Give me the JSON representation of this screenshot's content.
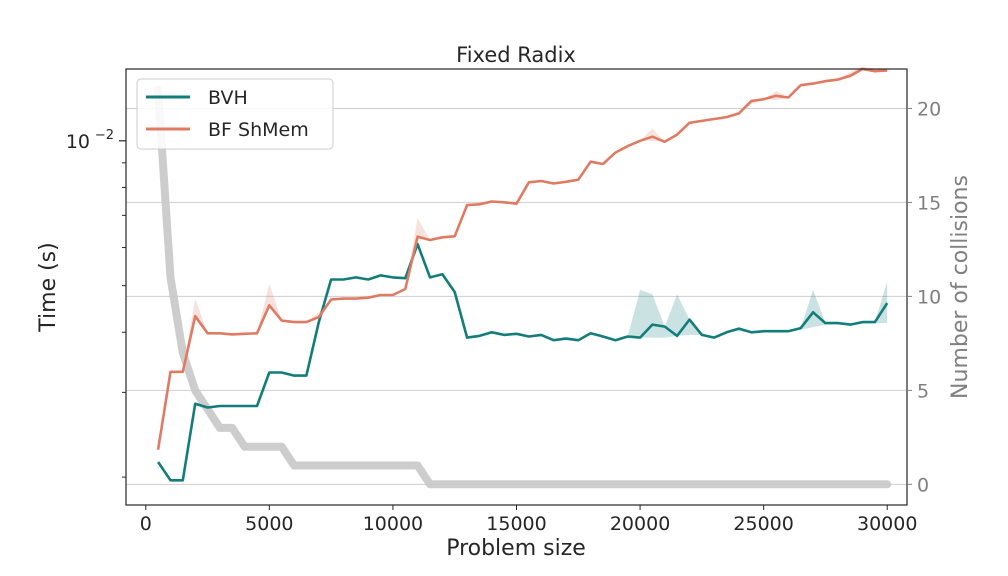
{
  "chart_data": {
    "type": "line",
    "title": "Fixed Radix",
    "xlabel": "Problem size",
    "ylabel_left": "Time (s)",
    "ylabel_right": "Number of collisions",
    "xlim": [
      -800,
      30800
    ],
    "xticks": [
      0,
      5000,
      10000,
      15000,
      20000,
      25000,
      30000
    ],
    "xtick_labels": [
      "0",
      "5000",
      "10000",
      "15000",
      "20000",
      "25000",
      "30000"
    ],
    "left_scale": "log",
    "left_ylim": [
      0.00175,
      0.0141
    ],
    "left_major_tick": {
      "value": 0.01,
      "base": "10",
      "exponent": "−2"
    },
    "left_minor_ticks": [
      0.002,
      0.003,
      0.004,
      0.005,
      0.006,
      0.007,
      0.008,
      0.009
    ],
    "right_ylim": [
      -1.1,
      22.1
    ],
    "right_ticks": [
      0,
      5,
      10,
      15,
      20
    ],
    "right_tick_labels": [
      "0",
      "5",
      "10",
      "15",
      "20"
    ],
    "grid": true,
    "legend_position": "top-left",
    "series": [
      {
        "name": "BVH",
        "color": "#127d7a",
        "x": [
          500,
          1000,
          1500,
          2000,
          2500,
          3000,
          3500,
          4000,
          4500,
          5000,
          5500,
          6000,
          6500,
          7000,
          7500,
          8000,
          8500,
          9000,
          9500,
          10000,
          10500,
          11000,
          11500,
          12000,
          12500,
          13000,
          13500,
          14000,
          14500,
          15000,
          15500,
          16000,
          16500,
          17000,
          17500,
          18000,
          18500,
          19000,
          19500,
          20000,
          20500,
          21000,
          21500,
          22000,
          22500,
          23000,
          23500,
          24000,
          24500,
          25000,
          25500,
          26000,
          26500,
          27000,
          27500,
          28000,
          28500,
          29000,
          29500,
          30000
        ],
        "y": [
          0.00215,
          0.00197,
          0.00197,
          0.00284,
          0.00279,
          0.00281,
          0.00281,
          0.00281,
          0.00281,
          0.0033,
          0.0033,
          0.00325,
          0.00325,
          0.0042,
          0.00515,
          0.00515,
          0.0052,
          0.00515,
          0.00525,
          0.0052,
          0.00518,
          0.0061,
          0.0052,
          0.00528,
          0.00485,
          0.0039,
          0.00393,
          0.004,
          0.00395,
          0.00397,
          0.00392,
          0.00395,
          0.00385,
          0.00388,
          0.00385,
          0.00398,
          0.00392,
          0.00385,
          0.00392,
          0.0039,
          0.00415,
          0.00411,
          0.00393,
          0.00425,
          0.00395,
          0.0039,
          0.004,
          0.00407,
          0.004,
          0.00402,
          0.00402,
          0.00402,
          0.00408,
          0.0044,
          0.00418,
          0.00418,
          0.00415,
          0.0042,
          0.0042,
          0.0046
        ],
        "band_upper": [
          0.00215,
          0.00197,
          0.00197,
          0.00284,
          0.00279,
          0.00281,
          0.00281,
          0.00281,
          0.00281,
          0.0033,
          0.0033,
          0.00325,
          0.00325,
          0.0042,
          0.00515,
          0.00515,
          0.0052,
          0.00515,
          0.00525,
          0.0052,
          0.00518,
          0.0061,
          0.0052,
          0.00528,
          0.00485,
          0.0039,
          0.00393,
          0.004,
          0.00395,
          0.00397,
          0.00392,
          0.00395,
          0.00385,
          0.00388,
          0.00385,
          0.00398,
          0.00392,
          0.00385,
          0.00392,
          0.0049,
          0.0048,
          0.00411,
          0.0048,
          0.00425,
          0.00395,
          0.0039,
          0.004,
          0.00407,
          0.004,
          0.00402,
          0.00402,
          0.00402,
          0.00408,
          0.0049,
          0.00418,
          0.00418,
          0.00415,
          0.0042,
          0.0042,
          0.0051
        ],
        "band_lower": [
          0.00215,
          0.00197,
          0.00197,
          0.00284,
          0.00279,
          0.00281,
          0.00281,
          0.00281,
          0.00281,
          0.0033,
          0.0033,
          0.00325,
          0.00325,
          0.0042,
          0.00515,
          0.00515,
          0.0052,
          0.00515,
          0.00525,
          0.0052,
          0.00518,
          0.0061,
          0.0052,
          0.00528,
          0.00485,
          0.0039,
          0.00393,
          0.004,
          0.00395,
          0.00397,
          0.00392,
          0.00395,
          0.00385,
          0.00388,
          0.00385,
          0.00398,
          0.00392,
          0.00385,
          0.00392,
          0.0039,
          0.0039,
          0.0039,
          0.00393,
          0.00395,
          0.00395,
          0.0039,
          0.004,
          0.00402,
          0.004,
          0.00402,
          0.00402,
          0.00402,
          0.00405,
          0.0041,
          0.00415,
          0.00418,
          0.00415,
          0.00418,
          0.00418,
          0.00418
        ]
      },
      {
        "name": "BF ShMem",
        "color": "#e07b63",
        "x": [
          500,
          1000,
          1500,
          2000,
          2500,
          3000,
          3500,
          4000,
          4500,
          5000,
          5500,
          6000,
          6500,
          7000,
          7500,
          8000,
          8500,
          9000,
          9500,
          10000,
          10500,
          11000,
          11500,
          12000,
          12500,
          13000,
          13500,
          14000,
          14500,
          15000,
          15500,
          16000,
          16500,
          17000,
          17500,
          18000,
          18500,
          19000,
          19500,
          20000,
          20500,
          21000,
          21500,
          22000,
          22500,
          23000,
          23500,
          24000,
          24500,
          25000,
          25500,
          26000,
          26500,
          27000,
          27500,
          28000,
          28500,
          29000,
          29500,
          30000
        ],
        "y": [
          0.00228,
          0.00331,
          0.00331,
          0.00432,
          0.00398,
          0.00398,
          0.00396,
          0.00397,
          0.00398,
          0.00455,
          0.00423,
          0.0042,
          0.0042,
          0.0043,
          0.00468,
          0.0047,
          0.0047,
          0.00472,
          0.00478,
          0.00478,
          0.00492,
          0.00632,
          0.00622,
          0.0063,
          0.00633,
          0.00735,
          0.00738,
          0.00748,
          0.00745,
          0.0074,
          0.0082,
          0.00825,
          0.00815,
          0.00822,
          0.0083,
          0.00905,
          0.00895,
          0.00945,
          0.00975,
          0.01,
          0.0102,
          0.00995,
          0.0103,
          0.0109,
          0.011,
          0.0111,
          0.0112,
          0.0114,
          0.0121,
          0.0122,
          0.0124,
          0.0123,
          0.01305,
          0.01315,
          0.0133,
          0.0134,
          0.01365,
          0.0141,
          0.01395,
          0.014
        ],
        "band_upper": [
          0.00228,
          0.00331,
          0.00331,
          0.0047,
          0.00398,
          0.00398,
          0.00396,
          0.00397,
          0.00398,
          0.00505,
          0.00423,
          0.0042,
          0.0042,
          0.0044,
          0.00468,
          0.0047,
          0.0047,
          0.00472,
          0.00478,
          0.00478,
          0.00492,
          0.0069,
          0.00622,
          0.0063,
          0.00633,
          0.00735,
          0.00738,
          0.00748,
          0.00745,
          0.0074,
          0.0082,
          0.00825,
          0.00815,
          0.00822,
          0.0083,
          0.00905,
          0.00895,
          0.00945,
          0.00975,
          0.01,
          0.0106,
          0.00995,
          0.0103,
          0.0109,
          0.011,
          0.0111,
          0.0112,
          0.0114,
          0.0121,
          0.0122,
          0.0127,
          0.0123,
          0.01305,
          0.01315,
          0.0133,
          0.0134,
          0.0139,
          0.0143,
          0.0141,
          0.014
        ],
        "band_lower": [
          0.00228,
          0.00331,
          0.00331,
          0.00432,
          0.00398,
          0.00398,
          0.00396,
          0.00397,
          0.00398,
          0.00455,
          0.00423,
          0.0042,
          0.0042,
          0.0043,
          0.00468,
          0.0047,
          0.0047,
          0.00472,
          0.00478,
          0.00478,
          0.00492,
          0.00632,
          0.00622,
          0.0063,
          0.00633,
          0.00735,
          0.00738,
          0.00748,
          0.00745,
          0.0074,
          0.0082,
          0.00825,
          0.00815,
          0.00822,
          0.0083,
          0.00905,
          0.00895,
          0.00945,
          0.00975,
          0.01,
          0.01,
          0.00995,
          0.0103,
          0.0109,
          0.011,
          0.0111,
          0.0112,
          0.0114,
          0.0119,
          0.0122,
          0.01215,
          0.0123,
          0.01305,
          0.01315,
          0.0133,
          0.0134,
          0.0135,
          0.014,
          0.01395,
          0.014
        ]
      },
      {
        "name": "Number of collisions",
        "color": "#c8c8c8",
        "axis": "right",
        "x": [
          500,
          1000,
          1500,
          2000,
          2500,
          3000,
          3500,
          4000,
          4500,
          5000,
          5500,
          6000,
          6500,
          7000,
          7500,
          8000,
          8500,
          9000,
          9500,
          10000,
          10500,
          11000,
          11500,
          12000,
          12500,
          13000,
          13500,
          14000,
          14500,
          15000,
          15500,
          16000,
          16500,
          17000,
          17500,
          18000,
          18500,
          19000,
          19500,
          20000,
          20500,
          21000,
          21500,
          22000,
          22500,
          23000,
          23500,
          24000,
          24500,
          25000,
          25500,
          26000,
          26500,
          27000,
          27500,
          28000,
          28500,
          29000,
          29500,
          30000
        ],
        "y": [
          21,
          11,
          7,
          5,
          4,
          3,
          3,
          2,
          2,
          2,
          2,
          1,
          1,
          1,
          1,
          1,
          1,
          1,
          1,
          1,
          1,
          1,
          0,
          0,
          0,
          0,
          0,
          0,
          0,
          0,
          0,
          0,
          0,
          0,
          0,
          0,
          0,
          0,
          0,
          0,
          0,
          0,
          0,
          0,
          0,
          0,
          0,
          0,
          0,
          0,
          0,
          0,
          0,
          0,
          0,
          0,
          0,
          0,
          0,
          0
        ]
      }
    ]
  }
}
